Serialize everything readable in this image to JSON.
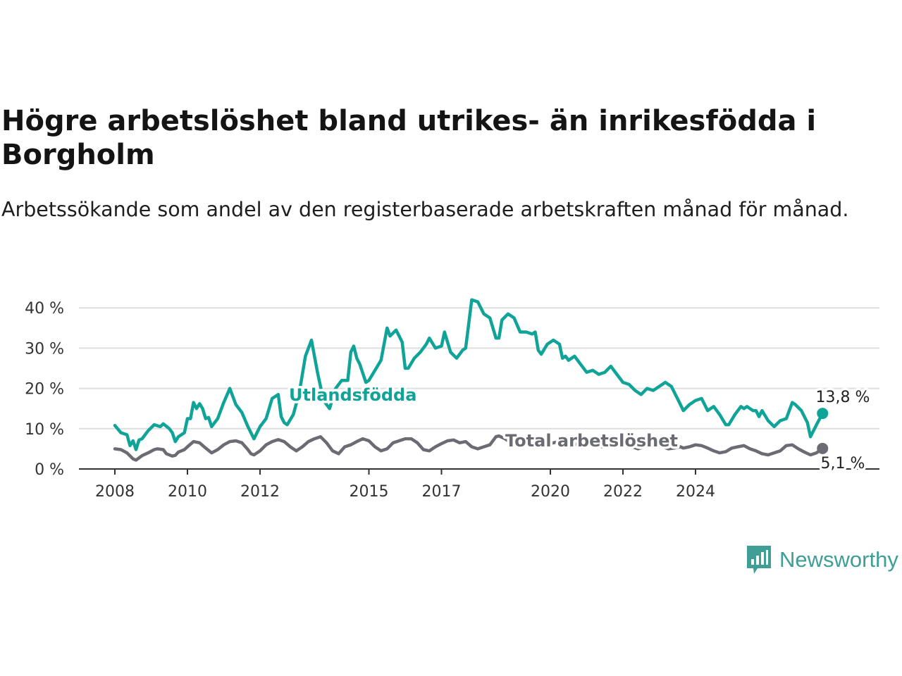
{
  "title": "Högre arbetslöshet bland utrikes- än inrikesfödda i Borgholm",
  "subtitle": "Arbetssökande som andel av den registerbaserade arbetskraften månad för månad.",
  "brand": "Newsworthy",
  "colors": {
    "foreign_born": "#10a398",
    "total": "#6b6b73",
    "grid": "#dedede",
    "axis": "#333333"
  },
  "chart_data": {
    "type": "line",
    "ylim": [
      0,
      45
    ],
    "y_ticks": [
      0,
      10,
      20,
      30,
      40
    ],
    "y_tick_labels": [
      "0 %",
      "10 %",
      "20 %",
      "30 %",
      "40 %"
    ],
    "x_ticks": [
      2008,
      2010,
      2012,
      2015,
      2017,
      2020,
      2022,
      2024
    ],
    "x_tick_labels": [
      "2008",
      "2010",
      "2012",
      "2015",
      "2017",
      "2020",
      "2022",
      "2024"
    ],
    "x_tick_dates": [
      "2008-01",
      "2010-01",
      "2012-01",
      "2015-01",
      "2017-01",
      "2020-01",
      "2022-01",
      "2024-01"
    ],
    "series": [
      {
        "name": "Utlandsfödda",
        "key": "foreign_born",
        "label_position": "above-line-2012",
        "end_label": "13,8 %",
        "points": [
          [
            "2008-01",
            10.8
          ],
          [
            "2008-03",
            9.0
          ],
          [
            "2008-05",
            8.5
          ],
          [
            "2008-06",
            5.8
          ],
          [
            "2008-07",
            7.0
          ],
          [
            "2008-08",
            4.8
          ],
          [
            "2008-09",
            7.2
          ],
          [
            "2008-10",
            7.5
          ],
          [
            "2008-12",
            9.5
          ],
          [
            "2009-02",
            11.0
          ],
          [
            "2009-04",
            10.5
          ],
          [
            "2009-05",
            11.2
          ],
          [
            "2009-07",
            10.0
          ],
          [
            "2009-08",
            9.0
          ],
          [
            "2009-09",
            6.8
          ],
          [
            "2009-10",
            8.0
          ],
          [
            "2009-12",
            9.0
          ],
          [
            "2010-01",
            12.5
          ],
          [
            "2010-02",
            12.5
          ],
          [
            "2010-03",
            16.5
          ],
          [
            "2010-04",
            15.0
          ],
          [
            "2010-05",
            16.2
          ],
          [
            "2010-06",
            15.0
          ],
          [
            "2010-07",
            12.5
          ],
          [
            "2010-08",
            12.8
          ],
          [
            "2010-09",
            10.5
          ],
          [
            "2010-11",
            12.5
          ],
          [
            "2011-01",
            16.5
          ],
          [
            "2011-03",
            20.0
          ],
          [
            "2011-05",
            16.0
          ],
          [
            "2011-07",
            14.0
          ],
          [
            "2011-09",
            10.5
          ],
          [
            "2011-11",
            7.5
          ],
          [
            "2012-01",
            10.5
          ],
          [
            "2012-03",
            12.5
          ],
          [
            "2012-05",
            17.5
          ],
          [
            "2012-07",
            18.5
          ],
          [
            "2012-08",
            13.0
          ],
          [
            "2012-09",
            11.5
          ],
          [
            "2012-10",
            11.0
          ],
          [
            "2012-12",
            13.5
          ],
          [
            "2013-02",
            19.0
          ],
          [
            "2013-04",
            28.0
          ],
          [
            "2013-06",
            32.0
          ],
          [
            "2013-08",
            24.0
          ],
          [
            "2013-10",
            17.0
          ],
          [
            "2013-12",
            15.0
          ],
          [
            "2014-02",
            20.0
          ],
          [
            "2014-04",
            22.0
          ],
          [
            "2014-06",
            22.0
          ],
          [
            "2014-07",
            29.0
          ],
          [
            "2014-08",
            30.5
          ],
          [
            "2014-09",
            27.5
          ],
          [
            "2014-10",
            26.0
          ],
          [
            "2014-12",
            21.5
          ],
          [
            "2015-01",
            22.0
          ],
          [
            "2015-03",
            24.5
          ],
          [
            "2015-05",
            27.0
          ],
          [
            "2015-07",
            35.0
          ],
          [
            "2015-08",
            33.0
          ],
          [
            "2015-10",
            34.5
          ],
          [
            "2015-12",
            31.5
          ],
          [
            "2016-01",
            25.0
          ],
          [
            "2016-02",
            25.0
          ],
          [
            "2016-04",
            27.5
          ],
          [
            "2016-06",
            29.0
          ],
          [
            "2016-08",
            31.0
          ],
          [
            "2016-09",
            32.5
          ],
          [
            "2016-11",
            30.0
          ],
          [
            "2017-01",
            30.5
          ],
          [
            "2017-02",
            34.0
          ],
          [
            "2017-04",
            29.0
          ],
          [
            "2017-06",
            27.5
          ],
          [
            "2017-08",
            29.5
          ],
          [
            "2017-09",
            30.0
          ],
          [
            "2017-11",
            42.0
          ],
          [
            "2018-01",
            41.5
          ],
          [
            "2018-03",
            38.5
          ],
          [
            "2018-05",
            37.5
          ],
          [
            "2018-07",
            32.5
          ],
          [
            "2018-08",
            32.5
          ],
          [
            "2018-09",
            37.0
          ],
          [
            "2018-11",
            38.5
          ],
          [
            "2019-01",
            37.5
          ],
          [
            "2019-03",
            34.0
          ],
          [
            "2019-05",
            34.0
          ],
          [
            "2019-07",
            33.5
          ],
          [
            "2019-08",
            34.0
          ],
          [
            "2019-09",
            29.5
          ],
          [
            "2019-10",
            28.5
          ],
          [
            "2019-12",
            31.0
          ],
          [
            "2020-02",
            32.0
          ],
          [
            "2020-04",
            31.0
          ],
          [
            "2020-05",
            27.5
          ],
          [
            "2020-06",
            28.0
          ],
          [
            "2020-07",
            27.0
          ],
          [
            "2020-09",
            28.0
          ],
          [
            "2020-11",
            26.0
          ],
          [
            "2021-01",
            24.0
          ],
          [
            "2021-03",
            24.5
          ],
          [
            "2021-05",
            23.5
          ],
          [
            "2021-07",
            24.0
          ],
          [
            "2021-09",
            25.5
          ],
          [
            "2021-11",
            23.5
          ],
          [
            "2022-01",
            21.5
          ],
          [
            "2022-03",
            21.0
          ],
          [
            "2022-05",
            19.5
          ],
          [
            "2022-07",
            18.5
          ],
          [
            "2022-09",
            20.0
          ],
          [
            "2022-11",
            19.5
          ],
          [
            "2023-01",
            20.5
          ],
          [
            "2023-03",
            21.5
          ],
          [
            "2023-05",
            20.5
          ],
          [
            "2023-07",
            17.5
          ],
          [
            "2023-09",
            14.5
          ],
          [
            "2023-11",
            16.0
          ],
          [
            "2024-01",
            17.0
          ],
          [
            "2024-03",
            17.5
          ],
          [
            "2024-05",
            14.5
          ],
          [
            "2024-07",
            15.5
          ],
          [
            "2024-09",
            13.5
          ],
          [
            "2024-11",
            11.0
          ],
          [
            "2024-12",
            11.0
          ],
          [
            "2025-02",
            13.5
          ],
          [
            "2025-04",
            15.5
          ],
          [
            "2025-05",
            15.0
          ],
          [
            "2025-06",
            15.5
          ],
          [
            "2025-08",
            14.5
          ],
          [
            "2025-09",
            14.5
          ],
          [
            "2025-10",
            13.0
          ],
          [
            "2025-11",
            14.5
          ],
          [
            "2026-01",
            12.0
          ],
          [
            "2026-03",
            10.5
          ],
          [
            "2026-05",
            12.0
          ],
          [
            "2026-07",
            12.5
          ],
          [
            "2026-09",
            16.5
          ],
          [
            "2026-10",
            16.0
          ],
          [
            "2026-12",
            14.5
          ],
          [
            "2027-02",
            11.5
          ],
          [
            "2027-03",
            8.0
          ],
          [
            "2027-05",
            11.0
          ],
          [
            "2027-07",
            13.8
          ]
        ]
      },
      {
        "name": "Total arbetslöshet",
        "key": "total",
        "label_position": "right-of-2017",
        "end_label": "5,1 %",
        "points": [
          [
            "2008-01",
            5.0
          ],
          [
            "2008-03",
            4.8
          ],
          [
            "2008-05",
            4.0
          ],
          [
            "2008-07",
            2.5
          ],
          [
            "2008-08",
            2.2
          ],
          [
            "2008-10",
            3.3
          ],
          [
            "2008-12",
            4.0
          ],
          [
            "2009-02",
            4.8
          ],
          [
            "2009-03",
            5.0
          ],
          [
            "2009-05",
            4.8
          ],
          [
            "2009-06",
            3.8
          ],
          [
            "2009-08",
            3.2
          ],
          [
            "2009-09",
            3.4
          ],
          [
            "2009-10",
            4.2
          ],
          [
            "2009-12",
            4.8
          ],
          [
            "2010-01",
            5.5
          ],
          [
            "2010-03",
            6.8
          ],
          [
            "2010-05",
            6.5
          ],
          [
            "2010-07",
            5.2
          ],
          [
            "2010-09",
            4.0
          ],
          [
            "2010-11",
            4.8
          ],
          [
            "2011-01",
            6.0
          ],
          [
            "2011-03",
            6.8
          ],
          [
            "2011-05",
            7.0
          ],
          [
            "2011-07",
            6.5
          ],
          [
            "2011-09",
            4.8
          ],
          [
            "2011-10",
            3.8
          ],
          [
            "2011-11",
            3.5
          ],
          [
            "2012-01",
            4.5
          ],
          [
            "2012-03",
            6.0
          ],
          [
            "2012-05",
            6.8
          ],
          [
            "2012-07",
            7.3
          ],
          [
            "2012-09",
            6.8
          ],
          [
            "2012-11",
            5.5
          ],
          [
            "2013-01",
            4.5
          ],
          [
            "2013-03",
            5.5
          ],
          [
            "2013-05",
            6.8
          ],
          [
            "2013-07",
            7.5
          ],
          [
            "2013-09",
            8.0
          ],
          [
            "2013-11",
            6.5
          ],
          [
            "2014-01",
            4.5
          ],
          [
            "2014-03",
            3.8
          ],
          [
            "2014-05",
            5.5
          ],
          [
            "2014-07",
            6.0
          ],
          [
            "2014-09",
            6.8
          ],
          [
            "2014-11",
            7.5
          ],
          [
            "2015-01",
            7.0
          ],
          [
            "2015-03",
            5.5
          ],
          [
            "2015-05",
            4.5
          ],
          [
            "2015-07",
            5.0
          ],
          [
            "2015-09",
            6.5
          ],
          [
            "2015-11",
            7.0
          ],
          [
            "2016-01",
            7.5
          ],
          [
            "2016-03",
            7.5
          ],
          [
            "2016-05",
            6.5
          ],
          [
            "2016-07",
            4.8
          ],
          [
            "2016-09",
            4.5
          ],
          [
            "2016-11",
            5.5
          ],
          [
            "2017-01",
            6.3
          ],
          [
            "2017-03",
            7.0
          ],
          [
            "2017-05",
            7.2
          ],
          [
            "2017-07",
            6.5
          ],
          [
            "2017-09",
            6.8
          ],
          [
            "2017-11",
            5.5
          ],
          [
            "2018-01",
            5.0
          ],
          [
            "2018-03",
            5.5
          ],
          [
            "2018-05",
            6.0
          ],
          [
            "2018-07",
            8.0
          ],
          [
            "2018-08",
            8.2
          ],
          [
            "2018-10",
            7.5
          ],
          [
            "2018-12",
            6.5
          ],
          [
            "2019-02",
            6.5
          ],
          [
            "2019-04",
            6.8
          ],
          [
            "2019-06",
            6.0
          ],
          [
            "2019-08",
            6.5
          ],
          [
            "2019-10",
            6.2
          ],
          [
            "2019-12",
            6.0
          ],
          [
            "2020-02",
            6.5
          ],
          [
            "2020-04",
            6.8
          ],
          [
            "2020-06",
            6.3
          ],
          [
            "2020-08",
            6.0
          ],
          [
            "2020-10",
            6.2
          ],
          [
            "2020-12",
            5.8
          ],
          [
            "2021-02",
            6.0
          ],
          [
            "2021-04",
            6.2
          ],
          [
            "2021-06",
            5.5
          ],
          [
            "2021-08",
            5.8
          ],
          [
            "2021-10",
            6.0
          ],
          [
            "2021-12",
            5.5
          ],
          [
            "2022-02",
            5.8
          ],
          [
            "2022-04",
            5.5
          ],
          [
            "2022-06",
            5.0
          ],
          [
            "2022-08",
            5.5
          ],
          [
            "2022-10",
            6.0
          ],
          [
            "2022-12",
            5.8
          ],
          [
            "2023-02",
            5.5
          ],
          [
            "2023-04",
            5.0
          ],
          [
            "2023-06",
            5.2
          ],
          [
            "2023-08",
            5.5
          ],
          [
            "2023-09",
            5.2
          ],
          [
            "2023-11",
            5.5
          ],
          [
            "2024-01",
            6.0
          ],
          [
            "2024-03",
            5.8
          ],
          [
            "2024-05",
            5.2
          ],
          [
            "2024-07",
            4.5
          ],
          [
            "2024-09",
            4.0
          ],
          [
            "2024-11",
            4.3
          ],
          [
            "2025-01",
            5.2
          ],
          [
            "2025-03",
            5.5
          ],
          [
            "2025-05",
            5.8
          ],
          [
            "2025-07",
            5.0
          ],
          [
            "2025-09",
            4.5
          ],
          [
            "2025-11",
            3.8
          ],
          [
            "2026-01",
            3.5
          ],
          [
            "2026-03",
            4.0
          ],
          [
            "2026-05",
            4.5
          ],
          [
            "2026-07",
            5.8
          ],
          [
            "2026-09",
            6.0
          ],
          [
            "2026-11",
            5.0
          ],
          [
            "2027-01",
            4.2
          ],
          [
            "2027-03",
            3.5
          ],
          [
            "2027-05",
            4.0
          ],
          [
            "2027-07",
            5.1
          ]
        ]
      }
    ]
  }
}
